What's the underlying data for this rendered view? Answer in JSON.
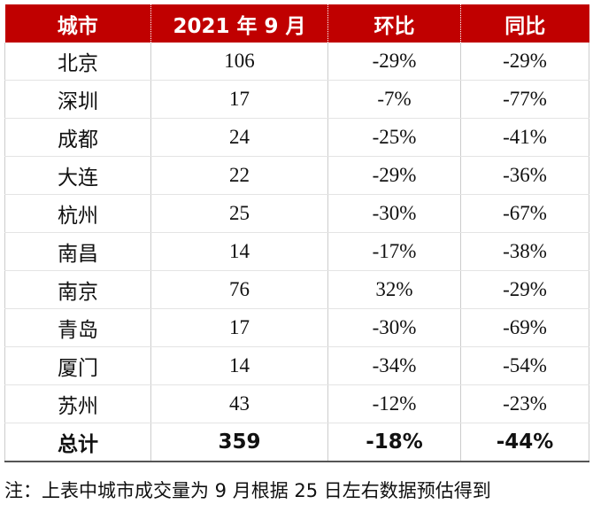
{
  "table": {
    "header": [
      "城市",
      "2021 年 9 月",
      "环比",
      "同比"
    ],
    "rows": [
      [
        "北京",
        "106",
        "-29%",
        "-29%"
      ],
      [
        "深圳",
        "17",
        "-7%",
        "-77%"
      ],
      [
        "成都",
        "24",
        "-25%",
        "-41%"
      ],
      [
        "大连",
        "22",
        "-29%",
        "-36%"
      ],
      [
        "杭州",
        "25",
        "-30%",
        "-67%"
      ],
      [
        "南昌",
        "14",
        "-17%",
        "-38%"
      ],
      [
        "南京",
        "76",
        "32%",
        "-29%"
      ],
      [
        "青岛",
        "17",
        "-30%",
        "-69%"
      ],
      [
        "厦门",
        "14",
        "-34%",
        "-54%"
      ],
      [
        "苏州",
        "43",
        "-12%",
        "-23%"
      ]
    ],
    "total": [
      "总计",
      "359",
      "-18%",
      "-44%"
    ]
  },
  "note": "注：上表中城市成交量为 9 月根据 25 日左右数据预估得到"
}
